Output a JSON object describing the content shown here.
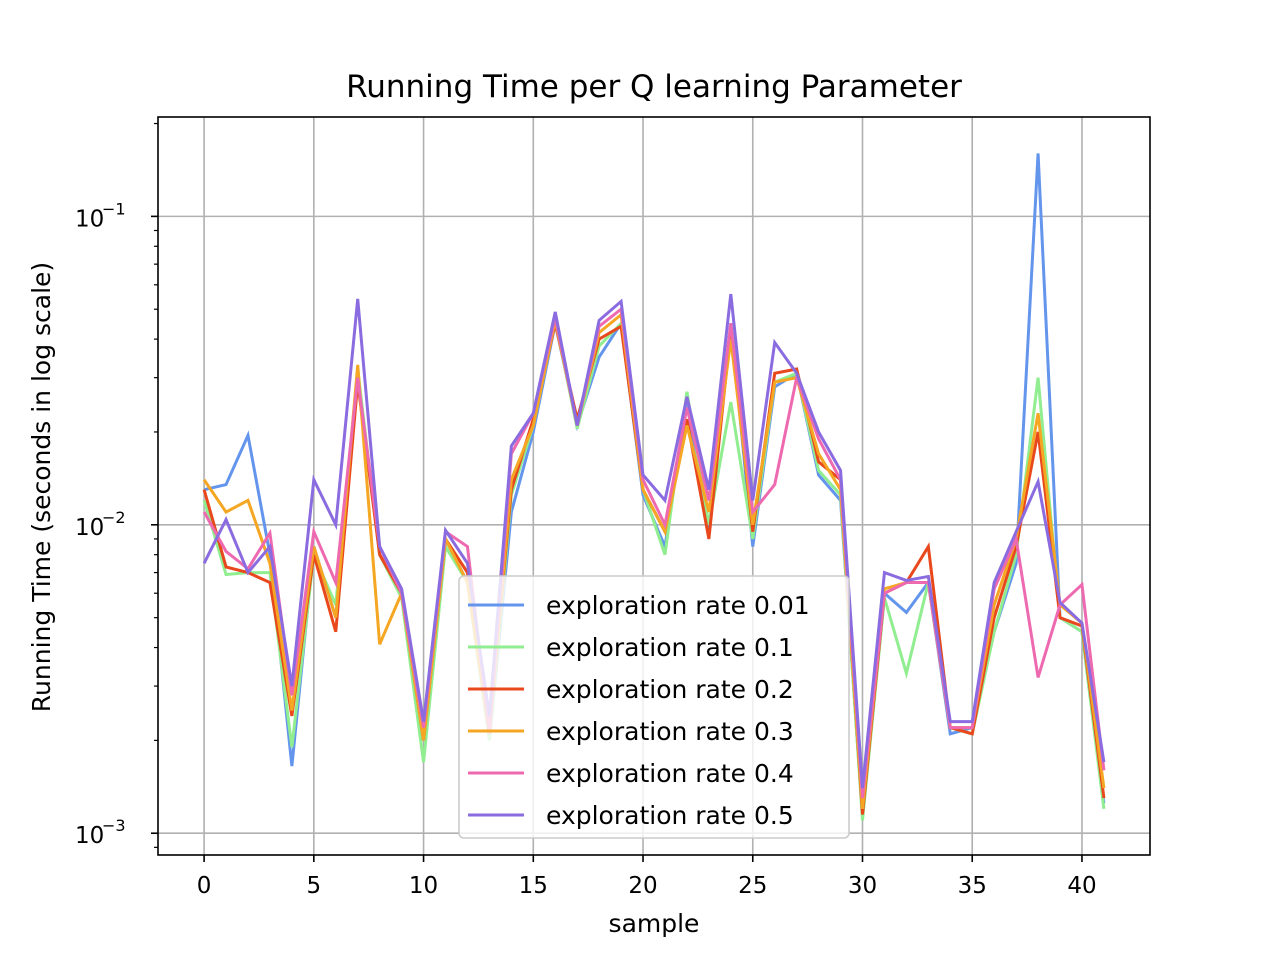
{
  "chart_data": {
    "type": "line",
    "title": "Running Time per Q learning Parameter",
    "xlabel": "sample",
    "ylabel": "Running Time (seconds in log scale)",
    "yscale": "log",
    "xlim": [
      -2.1,
      43.1
    ],
    "ylim": [
      0.00085,
      0.21
    ],
    "grid": true,
    "legend_position": "lower center",
    "x_ticks": [
      0,
      5,
      10,
      15,
      20,
      25,
      30,
      35,
      40
    ],
    "y_ticks": [
      {
        "value": 0.001,
        "base": "10",
        "exp": "−3"
      },
      {
        "value": 0.01,
        "base": "10",
        "exp": "−2"
      },
      {
        "value": 0.1,
        "base": "10",
        "exp": "−1"
      }
    ],
    "x": [
      0,
      1,
      2,
      3,
      4,
      5,
      6,
      7,
      8,
      9,
      10,
      11,
      12,
      13,
      14,
      15,
      16,
      17,
      18,
      19,
      20,
      21,
      22,
      23,
      24,
      25,
      26,
      27,
      28,
      29,
      30,
      31,
      32,
      33,
      34,
      35,
      36,
      37,
      38,
      39,
      40,
      41
    ],
    "series": [
      {
        "name": "exploration rate 0.01",
        "color": "#6495ED",
        "values": [
          0.013,
          0.0135,
          0.0195,
          0.008,
          0.00165,
          0.0085,
          0.005,
          0.03,
          0.008,
          0.006,
          0.002,
          0.009,
          0.0065,
          0.002,
          0.011,
          0.02,
          0.045,
          0.021,
          0.035,
          0.045,
          0.0125,
          0.0085,
          0.025,
          0.0095,
          0.045,
          0.0085,
          0.028,
          0.031,
          0.0145,
          0.012,
          0.00115,
          0.006,
          0.0052,
          0.0065,
          0.0021,
          0.0022,
          0.0045,
          0.0075,
          0.16,
          0.005,
          0.0045,
          0.00125
        ]
      },
      {
        "name": "exploration rate 0.1",
        "color": "#90EE90",
        "values": [
          0.012,
          0.0069,
          0.007,
          0.007,
          0.0019,
          0.008,
          0.0055,
          0.032,
          0.008,
          0.0058,
          0.0017,
          0.0085,
          0.0065,
          0.002,
          0.0125,
          0.021,
          0.046,
          0.0205,
          0.038,
          0.045,
          0.013,
          0.008,
          0.027,
          0.01,
          0.025,
          0.009,
          0.029,
          0.031,
          0.015,
          0.0125,
          0.0011,
          0.0058,
          0.0033,
          0.0065,
          0.0022,
          0.0021,
          0.0045,
          0.008,
          0.03,
          0.005,
          0.0045,
          0.0012
        ]
      },
      {
        "name": "exploration rate 0.2",
        "color": "#E8481C",
        "values": [
          0.013,
          0.0073,
          0.007,
          0.0065,
          0.0024,
          0.008,
          0.0045,
          0.029,
          0.008,
          0.006,
          0.002,
          0.009,
          0.007,
          0.0022,
          0.013,
          0.022,
          0.045,
          0.022,
          0.04,
          0.044,
          0.013,
          0.0095,
          0.022,
          0.009,
          0.043,
          0.0095,
          0.031,
          0.032,
          0.016,
          0.014,
          0.00115,
          0.006,
          0.0065,
          0.0085,
          0.0022,
          0.0021,
          0.005,
          0.0085,
          0.02,
          0.005,
          0.0047,
          0.0013
        ]
      },
      {
        "name": "exploration rate 0.3",
        "color": "#F5A623",
        "values": [
          0.014,
          0.011,
          0.012,
          0.0075,
          0.0025,
          0.0085,
          0.005,
          0.033,
          0.0041,
          0.006,
          0.002,
          0.009,
          0.0065,
          0.0021,
          0.014,
          0.021,
          0.046,
          0.021,
          0.042,
          0.048,
          0.013,
          0.0095,
          0.021,
          0.011,
          0.04,
          0.01,
          0.029,
          0.03,
          0.017,
          0.013,
          0.0012,
          0.0062,
          0.0065,
          0.0065,
          0.0022,
          0.0022,
          0.0055,
          0.009,
          0.023,
          0.0055,
          0.0048,
          0.0014
        ]
      },
      {
        "name": "exploration rate 0.4",
        "color": "#EE6AB0",
        "values": [
          0.011,
          0.0082,
          0.0072,
          0.0094,
          0.0028,
          0.0095,
          0.0065,
          0.03,
          0.0085,
          0.006,
          0.0022,
          0.0095,
          0.0085,
          0.0021,
          0.017,
          0.023,
          0.047,
          0.021,
          0.044,
          0.05,
          0.014,
          0.01,
          0.024,
          0.012,
          0.045,
          0.011,
          0.0135,
          0.03,
          0.019,
          0.014,
          0.0013,
          0.006,
          0.0065,
          0.0065,
          0.0022,
          0.0022,
          0.0062,
          0.009,
          0.0032,
          0.0055,
          0.0064,
          0.0016
        ]
      },
      {
        "name": "exploration rate 0.5",
        "color": "#8A6BE0",
        "values": [
          0.0075,
          0.0104,
          0.007,
          0.0085,
          0.003,
          0.014,
          0.01,
          0.054,
          0.0085,
          0.0062,
          0.0023,
          0.0096,
          0.0075,
          0.0024,
          0.018,
          0.023,
          0.049,
          0.021,
          0.046,
          0.053,
          0.0145,
          0.012,
          0.026,
          0.013,
          0.056,
          0.012,
          0.039,
          0.031,
          0.02,
          0.015,
          0.0014,
          0.007,
          0.0066,
          0.0068,
          0.0023,
          0.0023,
          0.0065,
          0.0095,
          0.0138,
          0.0056,
          0.0048,
          0.0017
        ]
      }
    ]
  }
}
